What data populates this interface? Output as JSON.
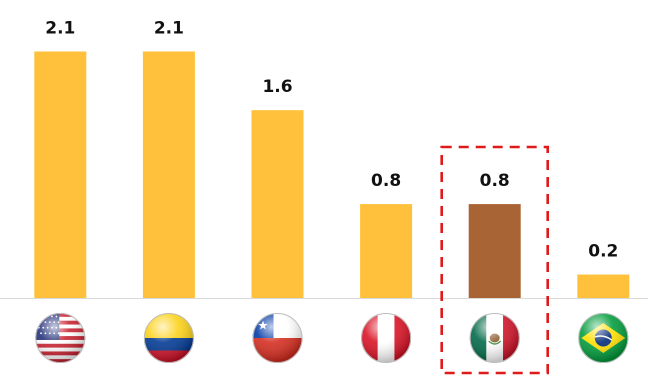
{
  "chart_data": {
    "type": "bar",
    "categories": [
      "USA",
      "Colombia",
      "Chile",
      "Peru",
      "Mexico",
      "Brazil"
    ],
    "values": [
      2.1,
      2.1,
      1.6,
      0.8,
      0.8,
      0.2
    ],
    "value_labels": [
      "2.1",
      "2.1",
      "1.6",
      "0.8",
      "0.8",
      "0.2"
    ],
    "title": "",
    "xlabel": "",
    "ylabel": "",
    "ylim": [
      0,
      2.3
    ],
    "grid": false,
    "legend": "none",
    "bar_colors": [
      "#FFC13B",
      "#FFC13B",
      "#FFC13B",
      "#FFC13B",
      "#A86434",
      "#FFC13B"
    ],
    "highlight": {
      "category": "Mexico",
      "style": "dashed-red-box",
      "color": "#E01919"
    },
    "axis_color": "#D9D9D9",
    "x_tick_icons": [
      "usa-flag-icon",
      "colombia-flag-icon",
      "chile-flag-icon",
      "peru-flag-icon",
      "mexico-flag-icon",
      "brazil-flag-icon"
    ]
  }
}
